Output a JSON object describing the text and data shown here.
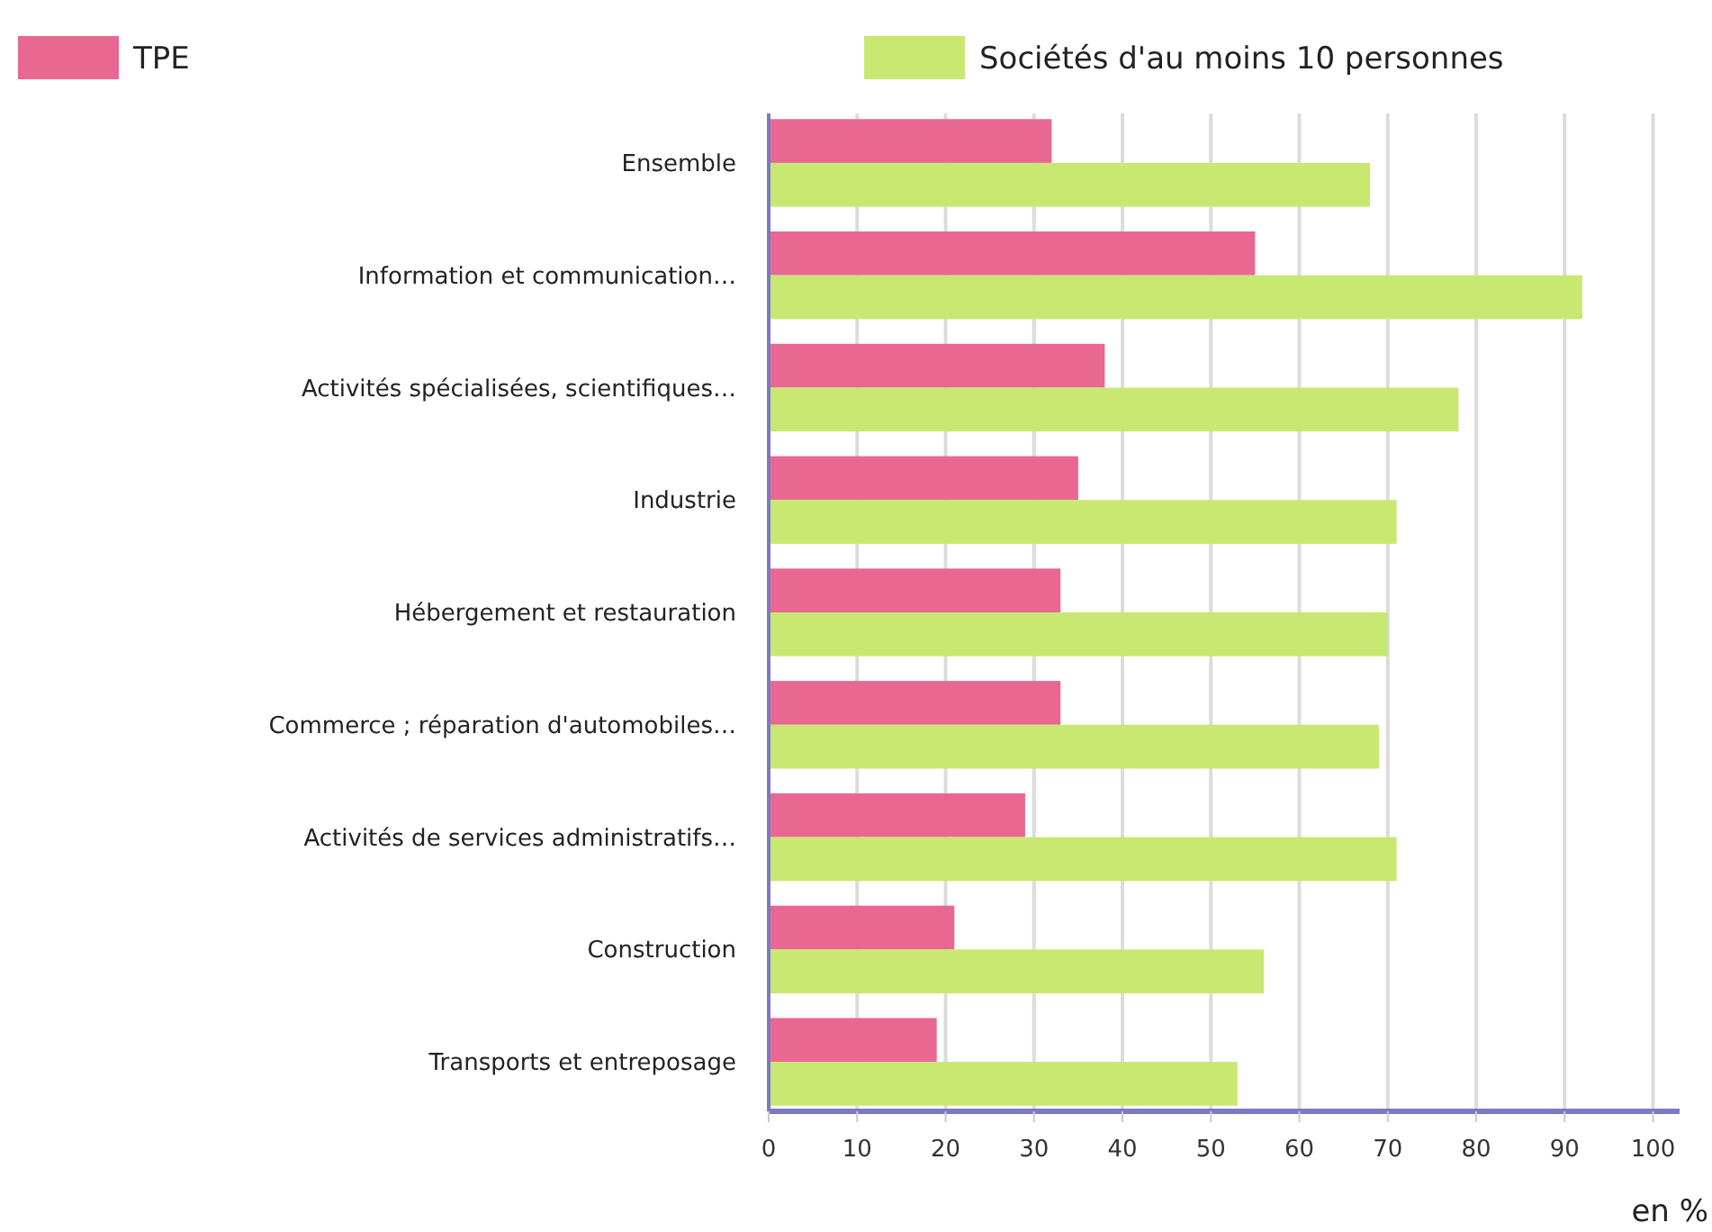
{
  "chart_data": {
    "type": "bar",
    "orientation": "horizontal",
    "xlabel": "en %",
    "categories": [
      "Ensemble",
      "Information et communication…",
      "Activités spécialisées, scientifiques…",
      "Industrie",
      "Hébergement et restauration",
      "Commerce ; réparation d'automobiles…",
      "Activités de services administratifs…",
      "Construction",
      "Transports et entreposage"
    ],
    "series": [
      {
        "name": "TPE",
        "color": "#e86892",
        "values": [
          32,
          55,
          38,
          35,
          33,
          33,
          29,
          21,
          19
        ]
      },
      {
        "name": "Sociétés d'au moins 10 personnes",
        "color": "#c8e872",
        "values": [
          68,
          92,
          78,
          71,
          70,
          69,
          71,
          56,
          53
        ]
      }
    ],
    "xlim": [
      0,
      103
    ],
    "xticks": [
      0,
      10,
      20,
      30,
      40,
      50,
      60,
      70,
      80,
      90,
      100
    ],
    "grid": "x",
    "legend": "top"
  }
}
